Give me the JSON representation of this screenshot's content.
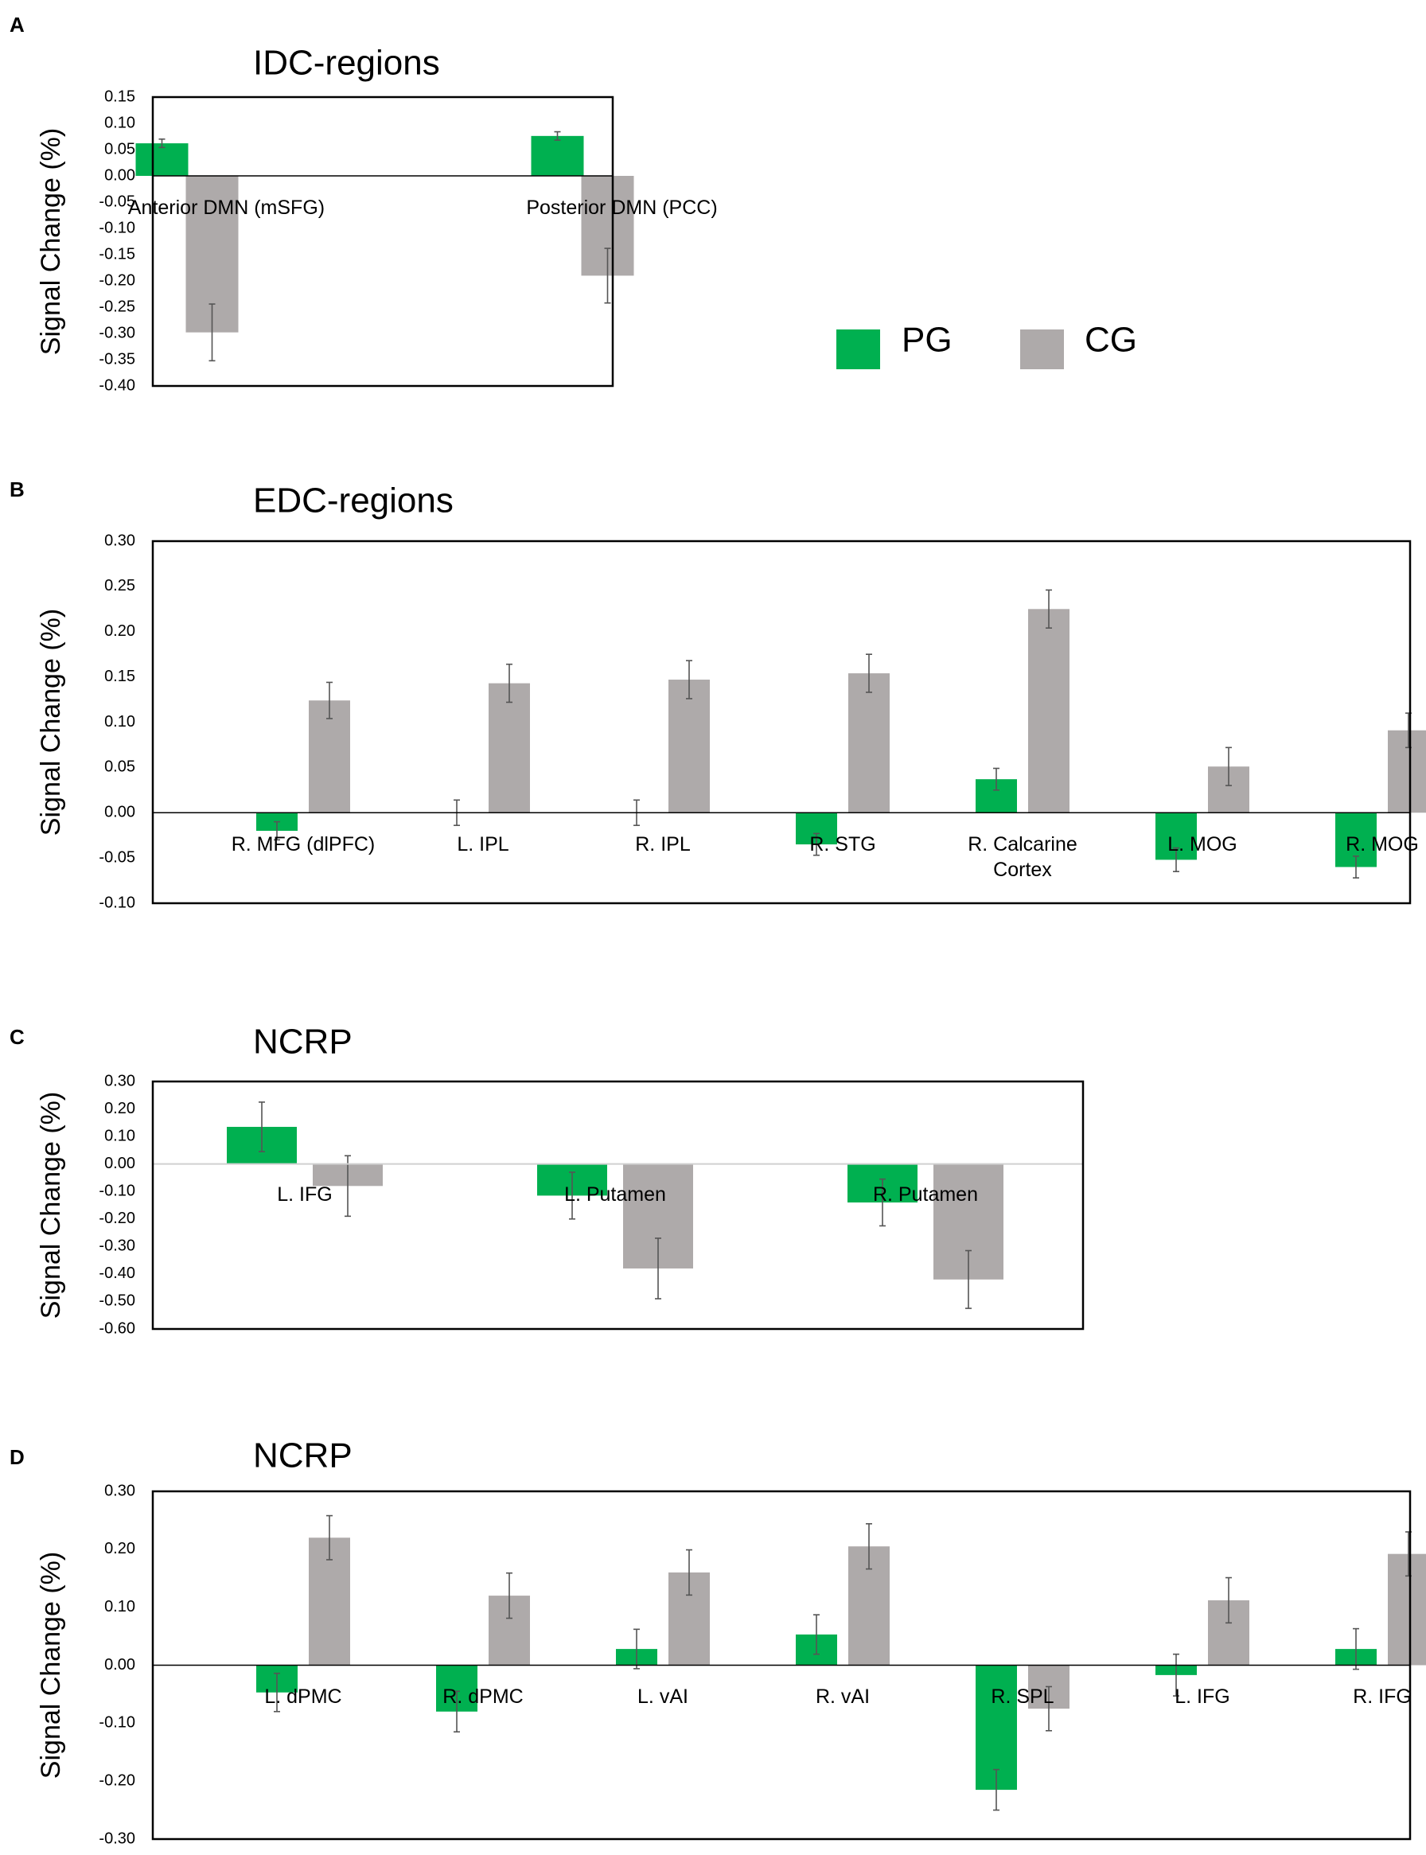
{
  "legend": {
    "items": [
      {
        "label": "PG",
        "color": "#00b050"
      },
      {
        "label": "CG",
        "color": "#aeaaaa"
      }
    ]
  },
  "chart_data": [
    {
      "letter": "A",
      "type": "bar",
      "title": "IDC-regions",
      "ylabel": "Signal Change (%)",
      "ylim": [
        -0.4,
        0.15
      ],
      "tick_step": 0.05,
      "tick_labels": [
        "0.15",
        "0.10",
        "0.05",
        "0.00",
        "-0.05",
        "-0.10",
        "-0.15",
        "-0.20",
        "-0.25",
        "-0.30",
        "-0.35",
        "-0.40"
      ],
      "categories": [
        [
          "Anterior DMN (mSFG)"
        ],
        [
          "Posterior DMN (PCC)"
        ]
      ],
      "series": [
        {
          "name": "PG",
          "values": [
            0.062,
            0.076
          ],
          "errors": [
            0.008,
            0.008
          ]
        },
        {
          "name": "CG",
          "values": [
            -0.298,
            -0.19
          ],
          "errors": [
            0.054,
            0.052
          ]
        }
      ]
    },
    {
      "letter": "B",
      "type": "bar",
      "title": "EDC-regions",
      "ylabel": "Signal Change (%)",
      "ylim": [
        -0.1,
        0.3
      ],
      "tick_step": 0.05,
      "tick_labels": [
        "0.30",
        "0.25",
        "0.20",
        "0.15",
        "0.10",
        "0.05",
        "0.00",
        "-0.05",
        "-0.10"
      ],
      "categories": [
        [
          "R. MFG (dlPFC)"
        ],
        [
          "L. IPL"
        ],
        [
          "R. IPL"
        ],
        [
          "R. STG"
        ],
        [
          "R. Calcarine",
          "Cortex"
        ],
        [
          "L. MOG"
        ],
        [
          "R. MOG"
        ]
      ],
      "series": [
        {
          "name": "PG",
          "values": [
            -0.02,
            0.0,
            0.0,
            -0.035,
            0.037,
            -0.052,
            -0.06
          ],
          "errors": [
            0.01,
            0.014,
            0.014,
            0.012,
            0.012,
            0.013,
            0.012
          ]
        },
        {
          "name": "CG",
          "values": [
            0.124,
            0.143,
            0.147,
            0.154,
            0.225,
            0.051,
            0.091
          ],
          "errors": [
            0.02,
            0.021,
            0.021,
            0.021,
            0.021,
            0.021,
            0.019
          ]
        }
      ]
    },
    {
      "letter": "C",
      "type": "bar",
      "title": "NCRP",
      "ylabel": "Signal Change (%)",
      "ylim": [
        -0.6,
        0.3
      ],
      "tick_step": 0.1,
      "tick_labels": [
        "0.30",
        "0.20",
        "0.10",
        "0.00",
        "-0.10",
        "-0.20",
        "-0.30",
        "-0.40",
        "-0.50",
        "-0.60"
      ],
      "categories": [
        [
          "L. IFG"
        ],
        [
          "L. Putamen"
        ],
        [
          "R. Putamen"
        ]
      ],
      "series": [
        {
          "name": "PG",
          "values": [
            0.135,
            -0.115,
            -0.14
          ],
          "errors": [
            0.09,
            0.085,
            0.085
          ]
        },
        {
          "name": "CG",
          "values": [
            -0.08,
            -0.38,
            -0.42
          ],
          "errors": [
            0.11,
            0.11,
            0.105
          ]
        }
      ]
    },
    {
      "letter": "D",
      "type": "bar",
      "title": "NCRP",
      "ylabel": "Signal Change (%)",
      "ylim": [
        -0.3,
        0.3
      ],
      "tick_step": 0.1,
      "tick_labels": [
        "0.30",
        "0.20",
        "0.10",
        "0.00",
        "-0.10",
        "-0.20",
        "-0.30"
      ],
      "categories": [
        [
          "L. dPMC"
        ],
        [
          "R. dPMC"
        ],
        [
          "L. vAI"
        ],
        [
          "R. vAI"
        ],
        [
          "R. SPL"
        ],
        [
          "L. IFG"
        ],
        [
          "R. IFG"
        ]
      ],
      "series": [
        {
          "name": "PG",
          "values": [
            -0.047,
            -0.08,
            0.028,
            0.053,
            -0.215,
            -0.017,
            0.028
          ],
          "errors": [
            0.033,
            0.035,
            0.034,
            0.034,
            0.035,
            0.036,
            0.035
          ]
        },
        {
          "name": "CG",
          "values": [
            0.22,
            0.12,
            0.16,
            0.205,
            -0.075,
            0.112,
            0.192
          ],
          "errors": [
            0.038,
            0.039,
            0.039,
            0.039,
            0.038,
            0.039,
            0.038
          ]
        }
      ]
    }
  ]
}
